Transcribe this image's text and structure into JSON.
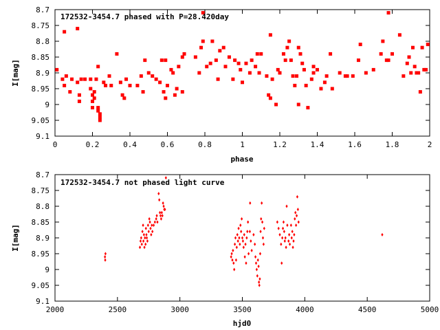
{
  "colors": {
    "points": "#ff0000",
    "axes": "#000000",
    "background": "#ffffff"
  },
  "chart_data": [
    {
      "type": "scatter",
      "title": "172532-3454.7 phased with P=28.420day",
      "xlabel": "phase",
      "ylabel": "I[mag]",
      "xlim": [
        0,
        2
      ],
      "ylim": [
        8.7,
        9.1
      ],
      "y_inverted": true,
      "grid": false,
      "marker": "filled-square",
      "x_ticks": [
        "0",
        "0.2",
        "0.4",
        "0.6",
        "0.8",
        "1",
        "1.2",
        "1.4",
        "1.6",
        "1.8",
        "2"
      ],
      "y_ticks": [
        "8.7",
        "8.75",
        "8.8",
        "8.85",
        "8.9",
        "8.95",
        "9",
        "9.05",
        "9.1"
      ],
      "points": [
        [
          0.01,
          8.89
        ],
        [
          0.04,
          8.92
        ],
        [
          0.05,
          8.77
        ],
        [
          0.05,
          8.94
        ],
        [
          0.06,
          8.91
        ],
        [
          0.08,
          8.96
        ],
        [
          0.09,
          8.92
        ],
        [
          0.12,
          8.93
        ],
        [
          0.12,
          8.76
        ],
        [
          0.13,
          8.97
        ],
        [
          0.13,
          8.99
        ],
        [
          0.14,
          8.92
        ],
        [
          0.16,
          8.92
        ],
        [
          0.19,
          8.92
        ],
        [
          0.19,
          8.95
        ],
        [
          0.2,
          8.97
        ],
        [
          0.2,
          8.99
        ],
        [
          0.2,
          9.01
        ],
        [
          0.21,
          8.96
        ],
        [
          0.21,
          8.98
        ],
        [
          0.22,
          8.92
        ],
        [
          0.23,
          8.88
        ],
        [
          0.23,
          9.01
        ],
        [
          0.23,
          9.02
        ],
        [
          0.24,
          9.04
        ],
        [
          0.24,
          9.05
        ],
        [
          0.24,
          9.03
        ],
        [
          0.26,
          8.93
        ],
        [
          0.27,
          8.94
        ],
        [
          0.29,
          8.91
        ],
        [
          0.3,
          8.94
        ],
        [
          0.33,
          8.84
        ],
        [
          0.35,
          8.93
        ],
        [
          0.36,
          8.97
        ],
        [
          0.37,
          8.98
        ],
        [
          0.38,
          8.92
        ],
        [
          0.4,
          8.94
        ],
        [
          0.44,
          8.94
        ],
        [
          0.46,
          8.91
        ],
        [
          0.47,
          8.96
        ],
        [
          0.48,
          8.86
        ],
        [
          0.5,
          8.9
        ],
        [
          0.52,
          8.91
        ],
        [
          0.54,
          8.92
        ],
        [
          0.56,
          8.93
        ],
        [
          0.57,
          8.86
        ],
        [
          0.58,
          8.96
        ],
        [
          0.59,
          8.98
        ],
        [
          0.59,
          8.86
        ],
        [
          0.6,
          8.94
        ],
        [
          0.62,
          8.89
        ],
        [
          0.63,
          8.9
        ],
        [
          0.64,
          8.97
        ],
        [
          0.65,
          8.95
        ],
        [
          0.66,
          8.88
        ],
        [
          0.68,
          8.96
        ],
        [
          0.68,
          8.85
        ],
        [
          0.69,
          8.84
        ],
        [
          0.75,
          8.85
        ],
        [
          0.77,
          8.9
        ],
        [
          0.78,
          8.82
        ],
        [
          0.79,
          8.8
        ],
        [
          0.79,
          8.71
        ],
        [
          0.81,
          8.88
        ],
        [
          0.83,
          8.87
        ],
        [
          0.84,
          8.8
        ],
        [
          0.86,
          8.86
        ],
        [
          0.87,
          8.92
        ],
        [
          0.88,
          8.83
        ],
        [
          0.9,
          8.82
        ],
        [
          0.91,
          8.88
        ],
        [
          0.93,
          8.85
        ],
        [
          0.95,
          8.92
        ],
        [
          0.96,
          8.86
        ],
        [
          0.98,
          8.87
        ],
        [
          0.99,
          8.89
        ],
        [
          1.0,
          8.93
        ],
        [
          1.02,
          8.87
        ],
        [
          1.04,
          8.9
        ],
        [
          1.05,
          8.86
        ],
        [
          1.07,
          8.88
        ],
        [
          1.08,
          8.84
        ],
        [
          1.09,
          8.9
        ],
        [
          1.1,
          8.84
        ],
        [
          1.13,
          8.91
        ],
        [
          1.14,
          8.97
        ],
        [
          1.15,
          8.98
        ],
        [
          1.15,
          8.78
        ],
        [
          1.16,
          8.92
        ],
        [
          1.18,
          9.0
        ],
        [
          1.19,
          8.89
        ],
        [
          1.2,
          8.9
        ],
        [
          1.22,
          8.84
        ],
        [
          1.23,
          8.86
        ],
        [
          1.24,
          8.82
        ],
        [
          1.25,
          8.8
        ],
        [
          1.26,
          8.86
        ],
        [
          1.27,
          8.91
        ],
        [
          1.28,
          8.94
        ],
        [
          1.29,
          8.91
        ],
        [
          1.3,
          9.0
        ],
        [
          1.3,
          8.82
        ],
        [
          1.31,
          8.84
        ],
        [
          1.32,
          8.87
        ],
        [
          1.33,
          8.89
        ],
        [
          1.34,
          8.94
        ],
        [
          1.35,
          9.01
        ],
        [
          1.37,
          8.92
        ],
        [
          1.38,
          8.9
        ],
        [
          1.38,
          8.88
        ],
        [
          1.4,
          8.89
        ],
        [
          1.42,
          8.95
        ],
        [
          1.44,
          8.93
        ],
        [
          1.45,
          8.91
        ],
        [
          1.47,
          8.84
        ],
        [
          1.48,
          8.95
        ],
        [
          1.52,
          8.9
        ],
        [
          1.55,
          8.91
        ],
        [
          1.56,
          8.91
        ],
        [
          1.59,
          8.91
        ],
        [
          1.62,
          8.86
        ],
        [
          1.63,
          8.81
        ],
        [
          1.66,
          8.9
        ],
        [
          1.7,
          8.89
        ],
        [
          1.74,
          8.84
        ],
        [
          1.75,
          8.8
        ],
        [
          1.77,
          8.86
        ],
        [
          1.78,
          8.86
        ],
        [
          1.78,
          8.71
        ],
        [
          1.8,
          8.84
        ],
        [
          1.84,
          8.78
        ],
        [
          1.86,
          8.91
        ],
        [
          1.88,
          8.87
        ],
        [
          1.89,
          8.85
        ],
        [
          1.9,
          8.9
        ],
        [
          1.91,
          8.82
        ],
        [
          1.92,
          8.88
        ],
        [
          1.93,
          8.9
        ],
        [
          1.94,
          8.9
        ],
        [
          1.95,
          8.96
        ],
        [
          1.96,
          8.82
        ],
        [
          1.97,
          8.89
        ],
        [
          1.98,
          8.89
        ],
        [
          1.99,
          8.81
        ]
      ]
    },
    {
      "type": "scatter",
      "title": "172532-3454.7 not phased light curve",
      "xlabel": "hjd0",
      "ylabel": "I[mag]",
      "xlim": [
        2000,
        5000
      ],
      "ylim": [
        8.7,
        9.1
      ],
      "y_inverted": true,
      "grid": false,
      "marker": "small-diamond",
      "x_ticks": [
        "2000",
        "2500",
        "3000",
        "3500",
        "4000",
        "4500",
        "5000"
      ],
      "y_ticks": [
        "8.7",
        "8.75",
        "8.8",
        "8.85",
        "8.9",
        "8.95",
        "9",
        "9.05",
        "9.1"
      ],
      "points": [
        [
          2400,
          8.96
        ],
        [
          2402,
          8.97
        ],
        [
          2404,
          8.95
        ],
        [
          2680,
          8.93
        ],
        [
          2685,
          8.91
        ],
        [
          2690,
          8.9
        ],
        [
          2695,
          8.92
        ],
        [
          2700,
          8.88
        ],
        [
          2705,
          8.86
        ],
        [
          2708,
          8.91
        ],
        [
          2712,
          8.89
        ],
        [
          2716,
          8.93
        ],
        [
          2720,
          8.9
        ],
        [
          2725,
          8.92
        ],
        [
          2728,
          8.87
        ],
        [
          2732,
          8.89
        ],
        [
          2735,
          8.9
        ],
        [
          2740,
          8.91
        ],
        [
          2745,
          8.86
        ],
        [
          2750,
          8.88
        ],
        [
          2755,
          8.84
        ],
        [
          2760,
          8.85
        ],
        [
          2765,
          8.87
        ],
        [
          2770,
          8.89
        ],
        [
          2775,
          8.86
        ],
        [
          2780,
          8.88
        ],
        [
          2790,
          8.86
        ],
        [
          2800,
          8.85
        ],
        [
          2810,
          8.84
        ],
        [
          2815,
          8.83
        ],
        [
          2820,
          8.85
        ],
        [
          2830,
          8.76
        ],
        [
          2835,
          8.78
        ],
        [
          2840,
          8.82
        ],
        [
          2845,
          8.83
        ],
        [
          2850,
          8.84
        ],
        [
          2855,
          8.82
        ],
        [
          2860,
          8.83
        ],
        [
          2865,
          8.79
        ],
        [
          2870,
          8.8
        ],
        [
          2875,
          8.81
        ],
        [
          2880,
          8.81
        ],
        [
          2888,
          8.71
        ],
        [
          3410,
          8.96
        ],
        [
          3415,
          8.95
        ],
        [
          3420,
          8.97
        ],
        [
          3425,
          8.94
        ],
        [
          3430,
          8.98
        ],
        [
          3435,
          9.0
        ],
        [
          3440,
          8.92
        ],
        [
          3445,
          8.9
        ],
        [
          3450,
          8.97
        ],
        [
          3455,
          8.93
        ],
        [
          3460,
          8.89
        ],
        [
          3465,
          8.91
        ],
        [
          3470,
          8.87
        ],
        [
          3475,
          8.9
        ],
        [
          3480,
          8.92
        ],
        [
          3485,
          8.86
        ],
        [
          3490,
          8.88
        ],
        [
          3495,
          8.84
        ],
        [
          3500,
          8.9
        ],
        [
          3505,
          8.91
        ],
        [
          3510,
          8.93
        ],
        [
          3515,
          8.89
        ],
        [
          3520,
          8.96
        ],
        [
          3525,
          8.92
        ],
        [
          3530,
          8.98
        ],
        [
          3535,
          8.9
        ],
        [
          3540,
          8.88
        ],
        [
          3545,
          8.85
        ],
        [
          3550,
          8.95
        ],
        [
          3560,
          8.88
        ],
        [
          3562,
          8.79
        ],
        [
          3568,
          8.91
        ],
        [
          3575,
          8.94
        ],
        [
          3590,
          8.89
        ],
        [
          3600,
          8.92
        ],
        [
          3605,
          8.96
        ],
        [
          3610,
          8.98
        ],
        [
          3615,
          9.0
        ],
        [
          3620,
          9.02
        ],
        [
          3625,
          8.97
        ],
        [
          3630,
          8.99
        ],
        [
          3633,
          9.04
        ],
        [
          3636,
          9.05
        ],
        [
          3640,
          9.03
        ],
        [
          3643,
          8.95
        ],
        [
          3646,
          8.88
        ],
        [
          3650,
          8.84
        ],
        [
          3655,
          8.79
        ],
        [
          3660,
          8.85
        ],
        [
          3665,
          8.9
        ],
        [
          3670,
          8.92
        ],
        [
          3675,
          8.87
        ],
        [
          3780,
          8.85
        ],
        [
          3790,
          8.87
        ],
        [
          3800,
          8.89
        ],
        [
          3810,
          8.92
        ],
        [
          3815,
          8.98
        ],
        [
          3820,
          8.9
        ],
        [
          3825,
          8.87
        ],
        [
          3830,
          8.85
        ],
        [
          3835,
          8.88
        ],
        [
          3840,
          8.91
        ],
        [
          3845,
          8.9
        ],
        [
          3850,
          8.93
        ],
        [
          3855,
          8.8
        ],
        [
          3860,
          8.86
        ],
        [
          3870,
          8.91
        ],
        [
          3875,
          8.89
        ],
        [
          3880,
          8.92
        ],
        [
          3890,
          8.86
        ],
        [
          3895,
          8.9
        ],
        [
          3900,
          8.88
        ],
        [
          3905,
          8.93
        ],
        [
          3910,
          8.91
        ],
        [
          3915,
          8.89
        ],
        [
          3920,
          8.84
        ],
        [
          3925,
          8.82
        ],
        [
          3930,
          8.86
        ],
        [
          3935,
          8.83
        ],
        [
          3940,
          8.77
        ],
        [
          3945,
          8.81
        ],
        [
          3950,
          8.85
        ],
        [
          4620,
          8.89
        ]
      ]
    }
  ]
}
